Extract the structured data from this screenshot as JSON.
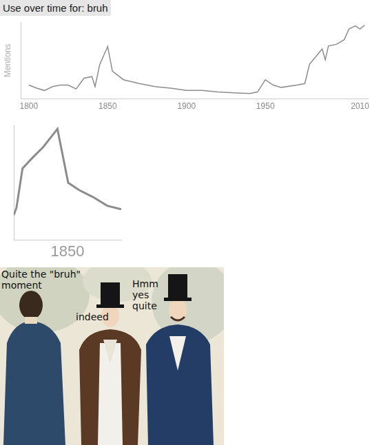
{
  "chart_data": [
    {
      "type": "line",
      "title": "Use over time for: bruh",
      "ylabel": "Mentions",
      "x": [
        1800,
        1805,
        1810,
        1815,
        1820,
        1825,
        1830,
        1835,
        1840,
        1842,
        1845,
        1848,
        1850,
        1853,
        1860,
        1870,
        1880,
        1890,
        1900,
        1910,
        1920,
        1930,
        1940,
        1945,
        1950,
        1955,
        1960,
        1970,
        1975,
        1978,
        1982,
        1986,
        1988,
        1990,
        1995,
        2000,
        2003,
        2007,
        2010,
        2013
      ],
      "values": [
        18,
        14,
        11,
        16,
        18,
        18,
        13,
        27,
        29,
        16,
        45,
        59,
        68,
        36,
        25,
        20,
        16,
        14,
        11,
        11,
        9,
        8,
        7,
        9,
        25,
        18,
        15,
        18,
        20,
        45,
        55,
        65,
        51,
        69,
        71,
        77,
        91,
        95,
        91,
        96
      ],
      "xlim": [
        1795,
        2015
      ],
      "xticks": [
        1800,
        1850,
        1900,
        1950,
        2010
      ],
      "ylim": [
        0,
        100
      ],
      "tick_labels": "x",
      "grid": false,
      "color": "#8c8c8c"
    },
    {
      "type": "line",
      "x": [
        1842.0,
        1842.4,
        1843.3,
        1844.8,
        1846.4,
        1848.5,
        1850.1,
        1851.7,
        1853.8,
        1855.9,
        1858.0
      ],
      "values": [
        24.2,
        28.3,
        50.6,
        56.7,
        62.8,
        73,
        42.5,
        38.4,
        34.4,
        29.5,
        27.5
      ],
      "xlim": [
        1842,
        1858
      ],
      "xticks": [
        1850
      ],
      "ylim": [
        10,
        75
      ],
      "tick_labels": "x",
      "grid": false,
      "color": "#8c8c8c"
    }
  ],
  "meme": {
    "speech": [
      "Quite the \"bruh\" moment",
      "indeed",
      "Hmm yes quite"
    ]
  }
}
